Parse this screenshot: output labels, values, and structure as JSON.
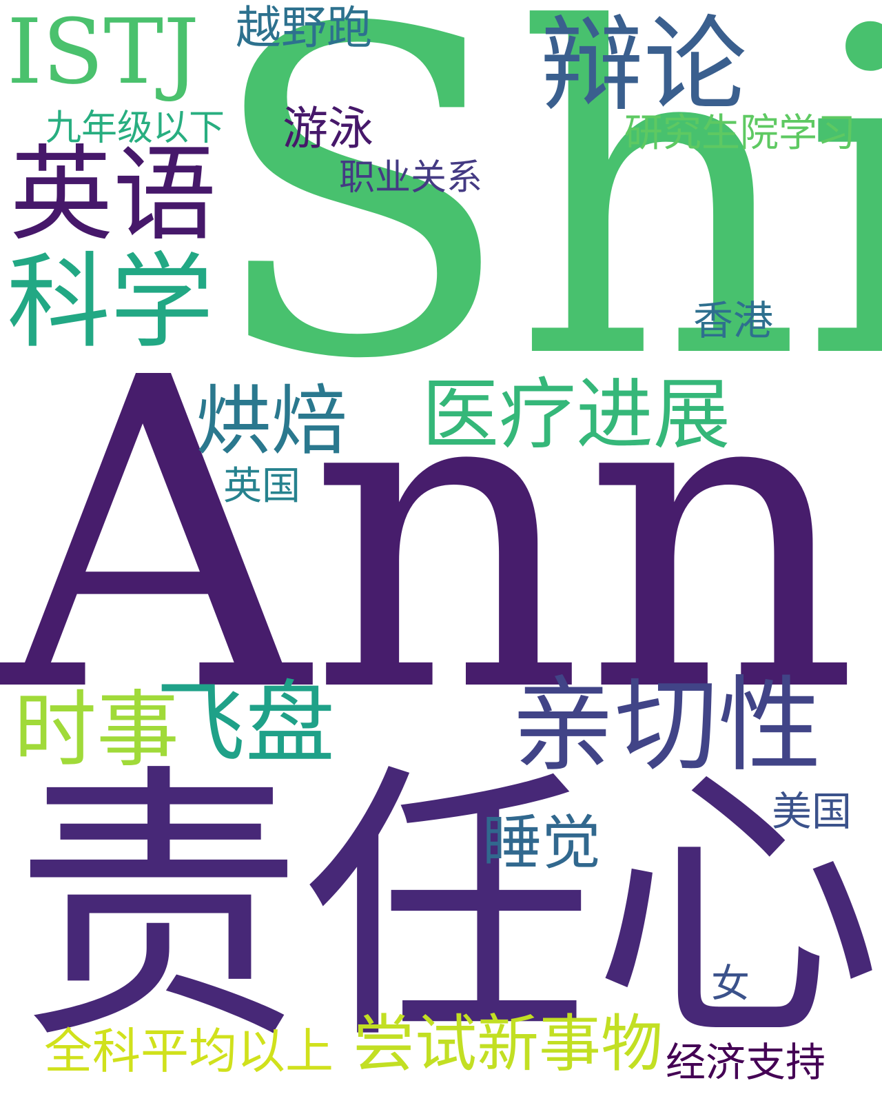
{
  "word_cloud": {
    "background": "#ffffff",
    "words": [
      {
        "id": "shi",
        "text": "Shi",
        "color": "#48c16e"
      },
      {
        "id": "ann",
        "text": "Ann",
        "color": "#471d6c"
      },
      {
        "id": "zeren",
        "text": "责任心",
        "color": "#472877"
      },
      {
        "id": "istj",
        "text": "ISTJ",
        "color": "#4ac16d"
      },
      {
        "id": "yueye",
        "text": "越野跑",
        "color": "#2d718e"
      },
      {
        "id": "bianlun",
        "text": "辩论",
        "color": "#3a5f8e"
      },
      {
        "id": "jiunian",
        "text": "九年级以下",
        "color": "#28ae80"
      },
      {
        "id": "youyong",
        "text": "游泳",
        "color": "#46186a"
      },
      {
        "id": "yanjiu",
        "text": "研究生院学习",
        "color": "#5ec962"
      },
      {
        "id": "zhiye",
        "text": "职业关系",
        "color": "#443a83"
      },
      {
        "id": "yingyu",
        "text": "英语",
        "color": "#46186a"
      },
      {
        "id": "kexue",
        "text": "科学",
        "color": "#22a884"
      },
      {
        "id": "xianggang",
        "text": "香港",
        "color": "#2e6f8e"
      },
      {
        "id": "hongbei",
        "text": "烘焙",
        "color": "#2a788e"
      },
      {
        "id": "yiliao",
        "text": "医疗进展",
        "color": "#35b779"
      },
      {
        "id": "yingguo",
        "text": "英国",
        "color": "#26828e"
      },
      {
        "id": "shishi",
        "text": "时事",
        "color": "#a0da39"
      },
      {
        "id": "feipan",
        "text": "飞盘",
        "color": "#1fa188"
      },
      {
        "id": "qinqie",
        "text": "亲切性",
        "color": "#414487"
      },
      {
        "id": "meiguo",
        "text": "美国",
        "color": "#3b528b"
      },
      {
        "id": "shuijiao",
        "text": "睡觉",
        "color": "#31688e"
      },
      {
        "id": "nv",
        "text": "女",
        "color": "#3b528b"
      },
      {
        "id": "quanke",
        "text": "全科平均以上",
        "color": "#d0e11c"
      },
      {
        "id": "changshi",
        "text": "尝试新事物",
        "color": "#c2df23"
      },
      {
        "id": "jingji",
        "text": "经济支持",
        "color": "#440154"
      }
    ]
  }
}
